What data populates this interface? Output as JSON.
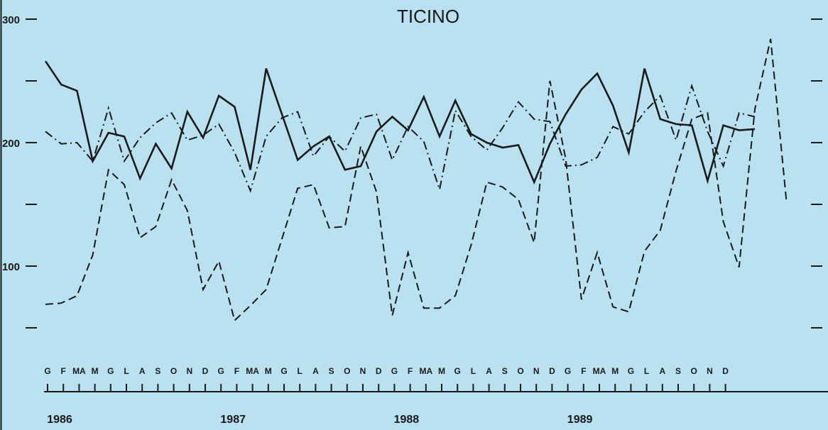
{
  "chart_data": {
    "type": "line",
    "title": "TICINO",
    "ylim": [
      0,
      300
    ],
    "y_tick_labels": [
      {
        "value": 300,
        "label": "300"
      },
      {
        "value": 250,
        "label": ""
      },
      {
        "value": 200,
        "label": "200"
      },
      {
        "value": 150,
        "label": ""
      },
      {
        "value": 100,
        "label": "100"
      },
      {
        "value": 50,
        "label": ""
      }
    ],
    "month_labels": [
      "G",
      "F",
      "MA",
      "M",
      "G",
      "L",
      "A",
      "S",
      "O",
      "N",
      "D",
      "G",
      "F",
      "MA",
      "M",
      "G",
      "L",
      "A",
      "S",
      "O",
      "N",
      "D",
      "G",
      "F",
      "MA",
      "M",
      "G",
      "L",
      "A",
      "S",
      "O",
      "N",
      "D",
      "G",
      "F",
      "MA",
      "M",
      "G",
      "L",
      "A",
      "S",
      "O",
      "N",
      "D"
    ],
    "years": [
      "1986",
      "1987",
      "1988",
      "1989"
    ],
    "grid": false,
    "legend": "none",
    "x_start_label": "1986 G",
    "x_step": "month",
    "series": [
      {
        "style": "solid",
        "values": [
          266,
          247,
          242,
          185,
          208,
          205,
          171,
          199,
          179,
          225,
          204,
          238,
          229,
          178,
          260,
          223,
          186,
          197,
          205,
          178,
          181,
          209,
          221,
          210,
          237,
          205,
          234,
          207,
          200,
          196,
          198,
          168,
          199,
          223,
          243,
          256,
          230,
          192,
          260,
          219,
          215,
          214,
          169,
          214,
          210,
          211
        ]
      },
      {
        "style": "dashed",
        "values": [
          69,
          70,
          76,
          109,
          178,
          166,
          123,
          132,
          170,
          145,
          81,
          104,
          56,
          68,
          81,
          122,
          163,
          166,
          131,
          132,
          197,
          160,
          60,
          111,
          66,
          66,
          76,
          117,
          168,
          164,
          154,
          119,
          250,
          187,
          73,
          111,
          67,
          63,
          112,
          129,
          177,
          219,
          224,
          136,
          99,
          227,
          284,
          153
        ]
      },
      {
        "style": "dashdot",
        "values": [
          209,
          199,
          200,
          185,
          228,
          185,
          204,
          216,
          224,
          202,
          206,
          215,
          192,
          161,
          205,
          220,
          225,
          189,
          205,
          193,
          220,
          223,
          186,
          213,
          201,
          162,
          226,
          205,
          194,
          212,
          233,
          219,
          217,
          181,
          182,
          188,
          213,
          207,
          225,
          238,
          202,
          246,
          209,
          181,
          224,
          221
        ]
      }
    ]
  }
}
